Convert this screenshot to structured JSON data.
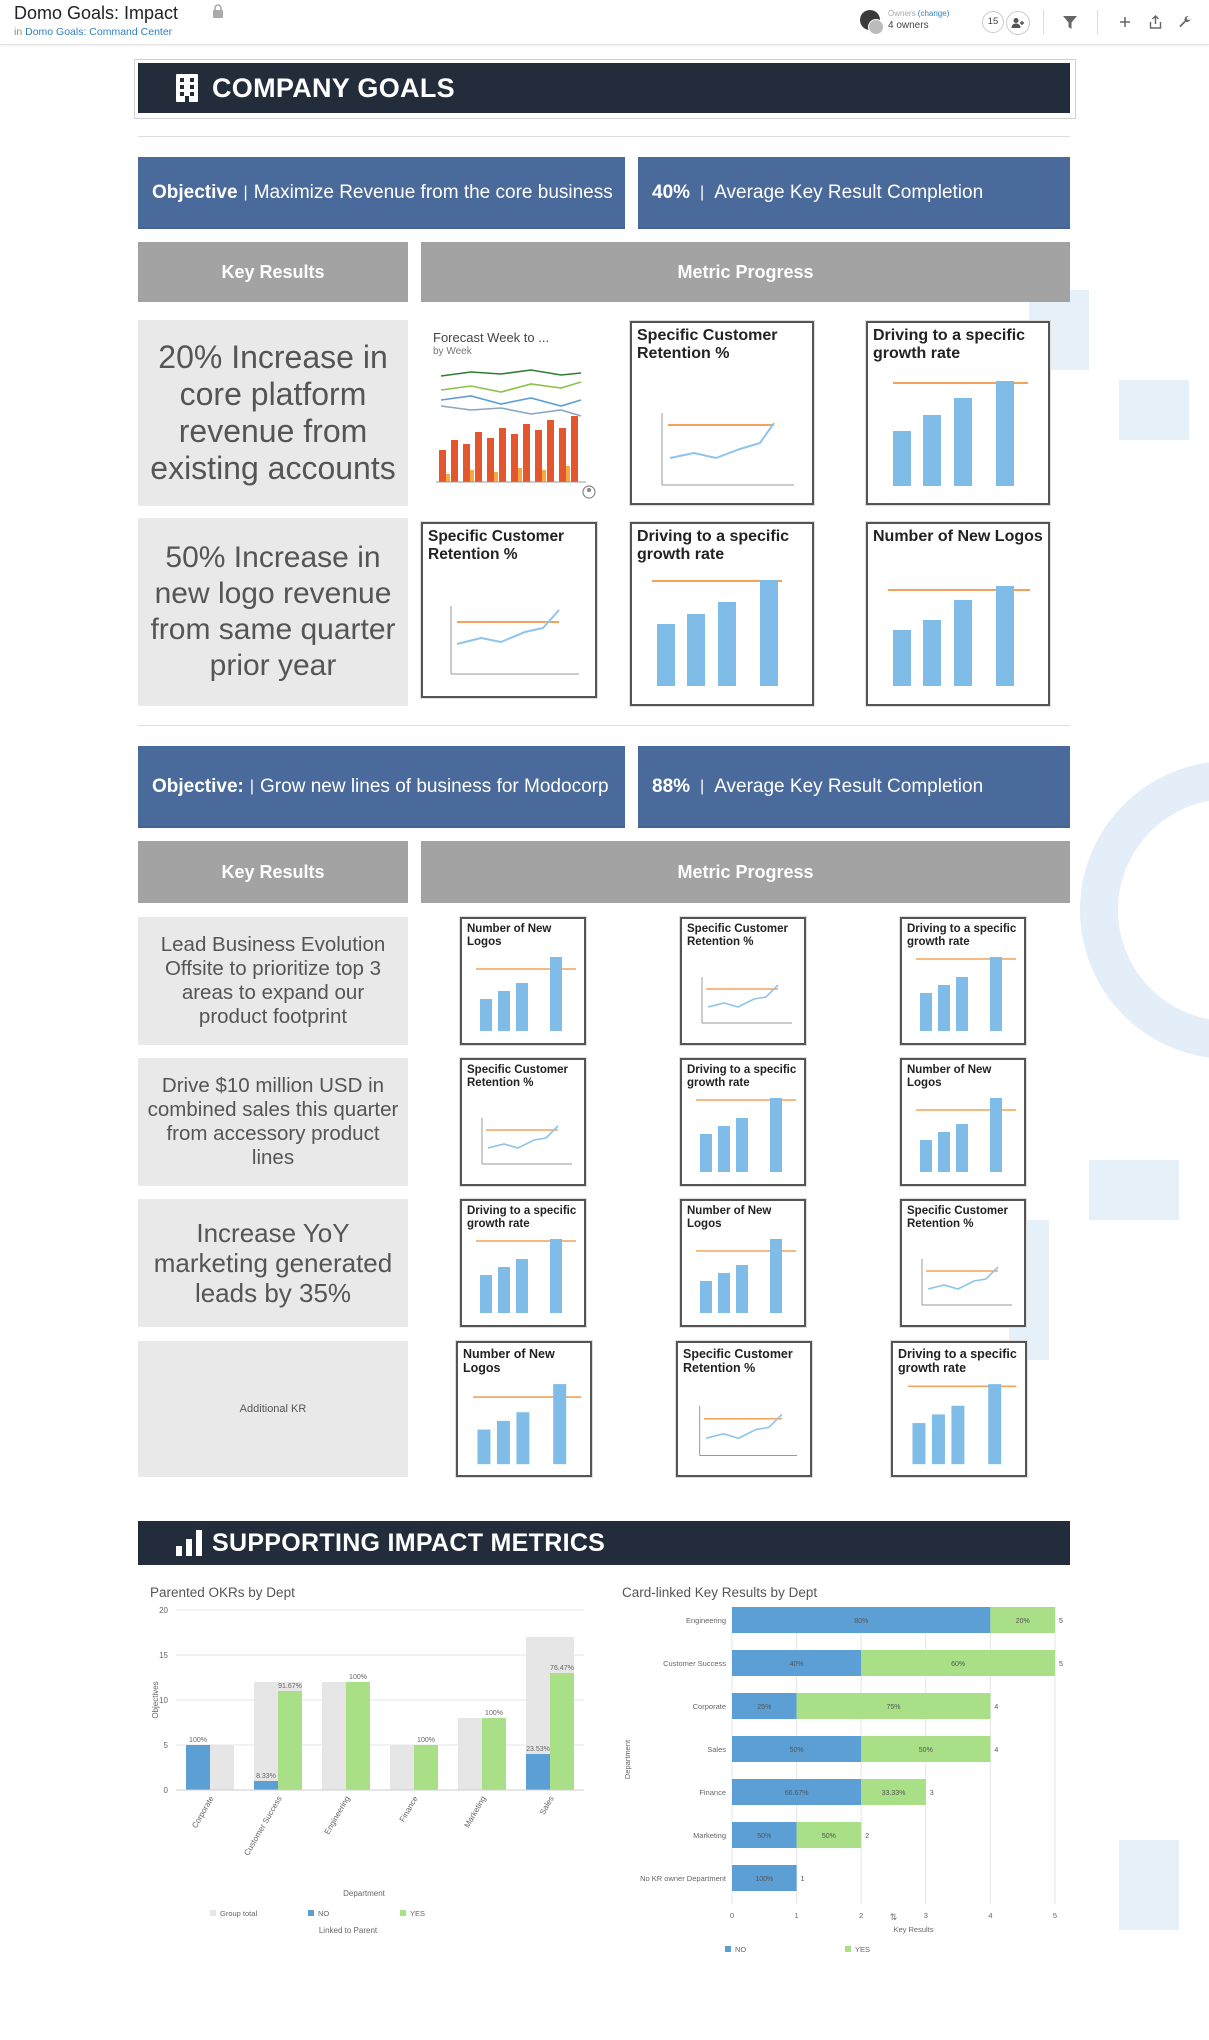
{
  "header": {
    "title": "Domo Goals: Impact",
    "breadcrumb_prefix": "in",
    "breadcrumb_link": "Domo Goals: Command Center",
    "owners_label": "Owners",
    "owners_change": "(change)",
    "owners_count": "4 owners",
    "followers_count": "15"
  },
  "company_goals": {
    "title": "COMPANY GOALS"
  },
  "objective1": {
    "label": "Objective",
    "text": "Maximize Revenue from the core business",
    "completion_value": "40%",
    "completion_label": "Average Key Result Completion",
    "key_results_header": "Key Results",
    "metric_progress_header": "Metric Progress",
    "key_results": [
      "20% Increase in core platform revenue from existing accounts",
      "50% Increase in new logo revenue from same quarter prior year"
    ],
    "forecast_card": {
      "title": "Forecast Week to ...",
      "subtitle": "by Week"
    }
  },
  "objective2": {
    "label": "Objective:",
    "text": "Grow new lines of business for Modocorp",
    "completion_value": "88%",
    "completion_label": "Average Key Result Completion",
    "key_results_header": "Key Results",
    "metric_progress_header": "Metric Progress",
    "key_results": [
      "Lead Business Evolution Offsite to prioritize top 3 areas to expand our product footprint",
      "Drive $10 million USD in combined sales this quarter from accessory product lines",
      "Increase YoY marketing generated leads by 35%",
      "Additional KR"
    ]
  },
  "card_titles": {
    "retention": "Specific Customer Retention %",
    "growth": "Driving to a specific growth rate",
    "logos": "Number of New Logos"
  },
  "supporting": {
    "title": "SUPPORTING IMPACT METRICS"
  },
  "colors": {
    "banner": "#232c3b",
    "objective": "#4a6a9b",
    "gray_header": "#a3a3a3",
    "kr_bg": "#e9e9e9",
    "bar_blue": "#7fbde8",
    "target_orange": "#f4a259",
    "no_blue": "#5b9fd4",
    "yes_green": "#a8df87",
    "group_gray": "#e6e6e6"
  },
  "chart_data": [
    {
      "type": "bar",
      "title": "Parented OKRs by Dept",
      "xlabel": "Department",
      "ylabel": "Objectives",
      "ylim": [
        0,
        20
      ],
      "yticks": [
        0,
        5,
        10,
        15,
        20
      ],
      "categories": [
        "Corporate",
        "Customer Success",
        "Engineering",
        "Finance",
        "Marketing",
        "Sales"
      ],
      "series": [
        {
          "name": "Group total",
          "values": [
            5,
            12,
            12,
            5,
            8,
            17
          ]
        },
        {
          "name": "NO",
          "values": [
            5,
            1,
            0,
            0,
            0,
            4
          ]
        },
        {
          "name": "YES",
          "values": [
            0,
            11,
            12,
            5,
            8,
            13
          ]
        }
      ],
      "data_labels": [
        {
          "category": "Corporate",
          "series": "NO",
          "label": "100%"
        },
        {
          "category": "Customer Success",
          "series": "NO",
          "label": "8.33%"
        },
        {
          "category": "Customer Success",
          "series": "YES",
          "label": "91.67%"
        },
        {
          "category": "Engineering",
          "series": "YES",
          "label": "100%"
        },
        {
          "category": "Finance",
          "series": "YES",
          "label": "100%"
        },
        {
          "category": "Marketing",
          "series": "YES",
          "label": "100%"
        },
        {
          "category": "Sales",
          "series": "NO",
          "label": "23.53%"
        },
        {
          "category": "Sales",
          "series": "YES",
          "label": "76.47%"
        }
      ],
      "legend_title": "Linked to Parent",
      "legend": [
        "Group total",
        "NO",
        "YES"
      ],
      "legend_position": "bottom"
    },
    {
      "type": "bar",
      "orientation": "horizontal",
      "stacked": true,
      "title": "Card-linked Key Results by Dept",
      "xlabel": "Key Results",
      "ylabel": "Department",
      "xlim": [
        0,
        5
      ],
      "xticks": [
        0,
        1,
        2,
        3,
        4,
        5
      ],
      "categories": [
        "Engineering",
        "Customer Success",
        "Corporate",
        "Sales",
        "Finance",
        "Marketing",
        "No KR owner Department"
      ],
      "series": [
        {
          "name": "NO",
          "values": [
            4,
            2,
            1,
            2,
            2,
            1,
            1
          ],
          "labels": [
            "80%",
            "40%",
            "25%",
            "50%",
            "66.67%",
            "50%",
            "100%"
          ]
        },
        {
          "name": "YES",
          "values": [
            1,
            3,
            3,
            2,
            1,
            1,
            0
          ],
          "labels": [
            "20%",
            "60%",
            "75%",
            "50%",
            "33.33%",
            "50%",
            ""
          ]
        }
      ],
      "totals": [
        "5",
        "5",
        "4",
        "4",
        "3",
        "2",
        "1"
      ],
      "legend": [
        "NO",
        "YES"
      ],
      "legend_position": "bottom"
    }
  ]
}
